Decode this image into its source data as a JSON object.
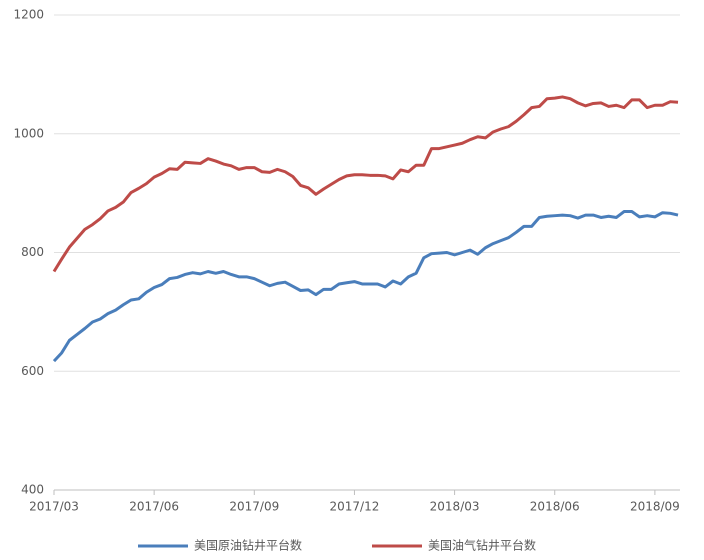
{
  "chart_data": {
    "type": "line",
    "categories": [
      "2017/03",
      null,
      null,
      null,
      null,
      null,
      null,
      null,
      null,
      null,
      null,
      null,
      null,
      "2017/06",
      null,
      null,
      null,
      null,
      null,
      null,
      null,
      null,
      null,
      null,
      null,
      null,
      "2017/09",
      null,
      null,
      null,
      null,
      null,
      null,
      null,
      null,
      null,
      null,
      null,
      null,
      "2017/12",
      null,
      null,
      null,
      null,
      null,
      null,
      null,
      null,
      null,
      null,
      null,
      null,
      "2018/03",
      null,
      null,
      null,
      null,
      null,
      null,
      null,
      null,
      null,
      null,
      null,
      null,
      "2018/06",
      null,
      null,
      null,
      null,
      null,
      null,
      null,
      null,
      null,
      null,
      null,
      null,
      "2018/09",
      null,
      null,
      null
    ],
    "series": [
      {
        "name": "美国原油钻井平台数",
        "color": "#4a7ebb",
        "values": [
          617,
          631,
          652,
          662,
          672,
          683,
          688,
          697,
          703,
          712,
          720,
          722,
          733,
          741,
          746,
          756,
          758,
          763,
          766,
          764,
          768,
          765,
          768,
          763,
          759,
          759,
          756,
          750,
          744,
          748,
          750,
          743,
          736,
          737,
          729,
          738,
          738,
          747,
          749,
          751,
          747,
          747,
          747,
          742,
          752,
          747,
          759,
          765,
          791,
          798,
          799,
          800,
          796,
          800,
          804,
          797,
          808,
          815,
          820,
          825,
          834,
          844,
          844,
          859,
          861,
          862,
          863,
          862,
          858,
          863,
          863,
          859,
          861,
          859,
          869,
          869,
          860,
          862,
          860,
          867,
          866,
          863
        ]
      },
      {
        "name": "美国油气钻井平台数",
        "color": "#be4b48",
        "values": [
          768,
          789,
          809,
          824,
          839,
          847,
          857,
          870,
          876,
          885,
          901,
          908,
          916,
          927,
          933,
          941,
          940,
          952,
          951,
          950,
          958,
          954,
          949,
          946,
          940,
          943,
          943,
          936,
          935,
          940,
          936,
          928,
          913,
          909,
          898,
          907,
          915,
          923,
          929,
          931,
          931,
          930,
          930,
          929,
          924,
          939,
          936,
          947,
          947,
          975,
          975,
          978,
          981,
          984,
          990,
          995,
          993,
          1003,
          1008,
          1012,
          1021,
          1032,
          1044,
          1046,
          1059,
          1060,
          1062,
          1059,
          1052,
          1047,
          1051,
          1052,
          1046,
          1048,
          1044,
          1057,
          1057,
          1044,
          1048,
          1048,
          1054,
          1053
        ]
      }
    ],
    "ylim": [
      400,
      1200
    ],
    "yticks": [
      400,
      600,
      800,
      1000,
      1200
    ],
    "grid": true,
    "legend": "bottom"
  }
}
